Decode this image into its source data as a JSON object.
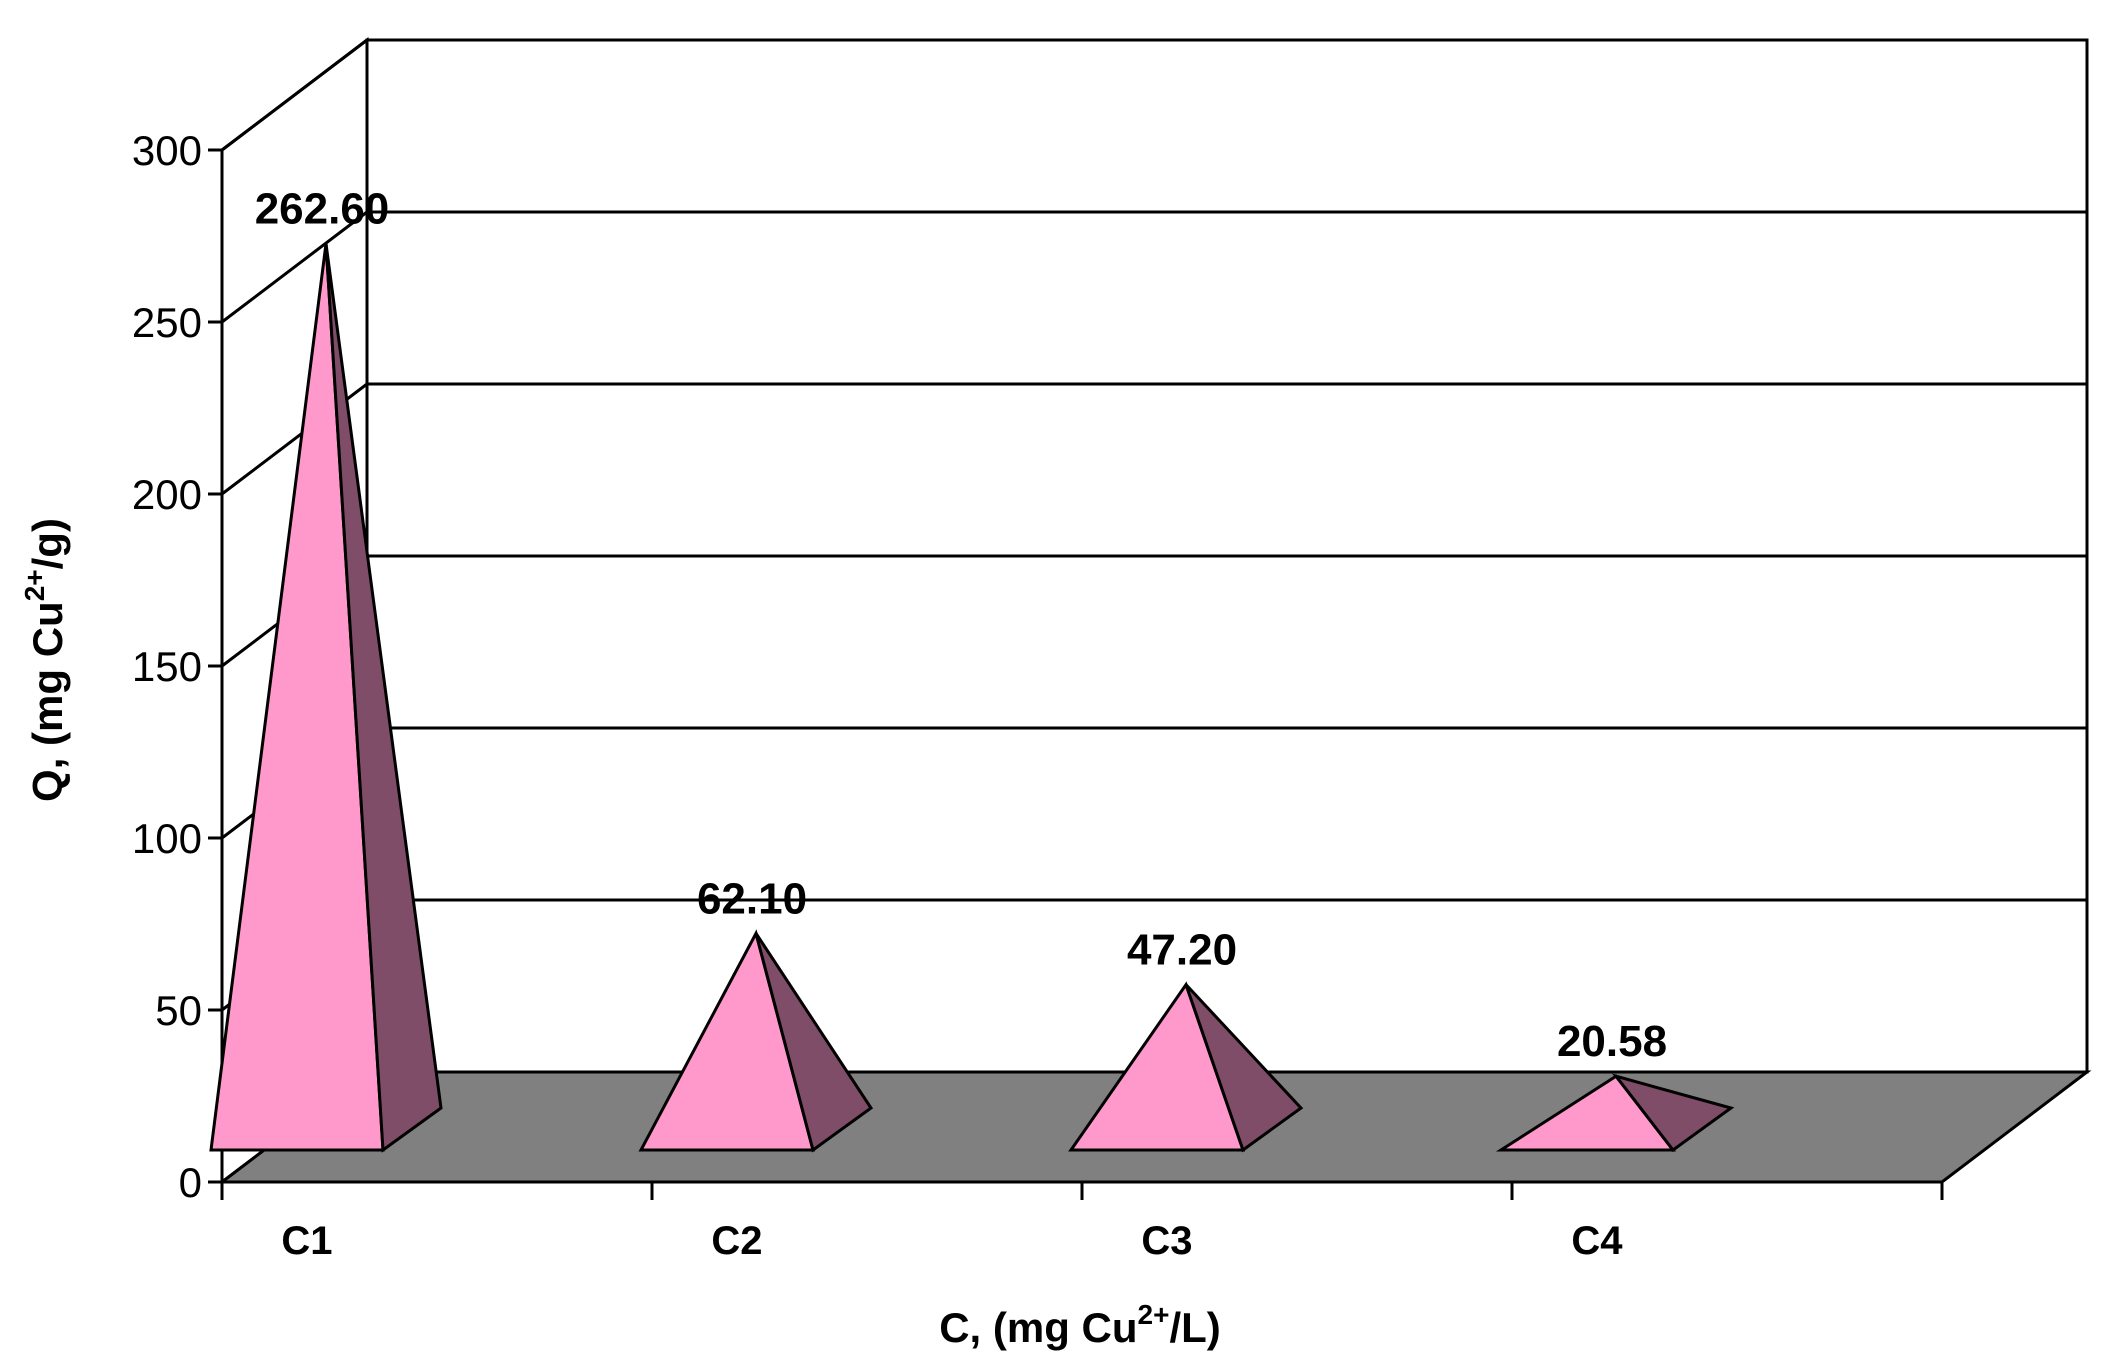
{
  "chart_data": {
    "type": "bar",
    "shape": "pyramid-3d",
    "categories": [
      "C1",
      "C2",
      "C3",
      "C4"
    ],
    "values": [
      262.6,
      62.1,
      47.2,
      20.58
    ],
    "data_labels": [
      "262.60",
      "62.10",
      "47.20",
      "20.58"
    ],
    "ylim": [
      0,
      300
    ],
    "yticks": [
      0,
      50,
      100,
      150,
      200,
      250,
      300
    ],
    "ytick_labels": [
      "0",
      "50",
      "100",
      "150",
      "200",
      "250",
      "300"
    ],
    "grid": true,
    "legend": "none",
    "xlabel": {
      "prefix": "C, (mg Cu",
      "sup": "2+",
      "suffix": "/L)"
    },
    "ylabel": {
      "prefix": "Q, (mg Cu",
      "sup": "2+",
      "suffix": "/g)"
    },
    "colors": {
      "pyramid_front": "#FF99CC",
      "pyramid_side": "#804D68",
      "floor": "#808080",
      "gridline": "#000000",
      "wall": "#FFFFFF"
    }
  }
}
